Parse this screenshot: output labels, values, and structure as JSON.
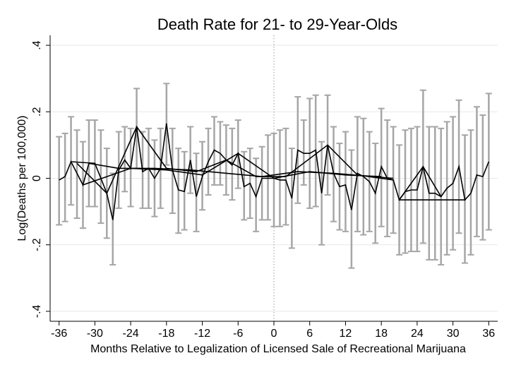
{
  "chart_data": {
    "type": "line",
    "title": "Death Rate for 21- to 29-Year-Olds",
    "xlabel": "Months Relative to Legalization of Licensed Sale of Recreational Marijuana",
    "ylabel": "Log(Deaths per 100,000)",
    "xlim": [
      -37.5,
      37.5
    ],
    "ylim": [
      -0.43,
      0.43
    ],
    "x_ticks": [
      -36,
      -30,
      -24,
      -18,
      -12,
      -6,
      0,
      6,
      12,
      18,
      24,
      30,
      36
    ],
    "y_ticks": [
      {
        "value": 0.4,
        "label": ".4"
      },
      {
        "value": 0.2,
        "label": ".2"
      },
      {
        "value": 0,
        "label": "0"
      },
      {
        "value": -0.2,
        "label": "-.2"
      },
      {
        "value": -0.4,
        "label": "-.4"
      }
    ],
    "grid": "horizontal",
    "reference_line": {
      "x": 0,
      "style": "dotted"
    },
    "colors": {
      "line": "#000000",
      "error_bars": "#a6a6a6",
      "grid": "#e8e8e8",
      "reference": "#9a9a9a"
    },
    "estimates": [
      {
        "x": -36,
        "y": -0.005,
        "lo": -0.14,
        "hi": 0.125
      },
      {
        "x": -35,
        "y": 0.005,
        "lo": -0.13,
        "hi": 0.135
      },
      {
        "x": -34,
        "y": 0.05,
        "lo": -0.08,
        "hi": 0.185
      },
      {
        "x": -33,
        "y": 0.015,
        "lo": -0.12,
        "hi": 0.145
      },
      {
        "x": -32,
        "y": -0.02,
        "lo": -0.15,
        "hi": 0.11
      },
      {
        "x": -31,
        "y": 0.045,
        "lo": -0.085,
        "hi": 0.175
      },
      {
        "x": -30,
        "y": 0.045,
        "lo": -0.085,
        "hi": 0.175
      },
      {
        "x": -29,
        "y": 0.0,
        "lo": -0.135,
        "hi": 0.145
      },
      {
        "x": -28,
        "y": -0.045,
        "lo": -0.18,
        "hi": 0.09
      },
      {
        "x": -27,
        "y": -0.125,
        "lo": -0.26,
        "hi": 0.015
      },
      {
        "x": -26,
        "y": 0.025,
        "lo": -0.09,
        "hi": 0.14
      },
      {
        "x": -25,
        "y": 0.055,
        "lo": -0.04,
        "hi": 0.155
      },
      {
        "x": -24,
        "y": 0.03,
        "lo": -0.085,
        "hi": 0.15
      },
      {
        "x": -23,
        "y": 0.155,
        "lo": 0.03,
        "hi": 0.27
      },
      {
        "x": -22,
        "y": 0.02,
        "lo": -0.09,
        "hi": 0.14
      },
      {
        "x": -21,
        "y": 0.03,
        "lo": -0.09,
        "hi": 0.15
      },
      {
        "x": -20,
        "y": 0.0,
        "lo": -0.115,
        "hi": 0.115
      },
      {
        "x": -19,
        "y": 0.03,
        "lo": -0.09,
        "hi": 0.15
      },
      {
        "x": -18,
        "y": 0.165,
        "lo": 0.04,
        "hi": 0.285
      },
      {
        "x": -17,
        "y": 0.025,
        "lo": -0.105,
        "hi": 0.15
      },
      {
        "x": -16,
        "y": -0.035,
        "lo": -0.165,
        "hi": 0.09
      },
      {
        "x": -15,
        "y": -0.04,
        "lo": -0.155,
        "hi": 0.08
      },
      {
        "x": -14,
        "y": 0.055,
        "lo": -0.045,
        "hi": 0.155
      },
      {
        "x": -13,
        "y": -0.055,
        "lo": -0.16,
        "hi": 0.075
      },
      {
        "x": -12,
        "y": 0.005,
        "lo": -0.095,
        "hi": 0.11
      },
      {
        "x": -11,
        "y": 0.05,
        "lo": -0.05,
        "hi": 0.15
      },
      {
        "x": -10,
        "y": 0.085,
        "lo": -0.02,
        "hi": 0.185
      },
      {
        "x": -9,
        "y": 0.075,
        "lo": -0.02,
        "hi": 0.17
      },
      {
        "x": -8,
        "y": 0.055,
        "lo": -0.05,
        "hi": 0.16
      },
      {
        "x": -7,
        "y": 0.04,
        "lo": -0.065,
        "hi": 0.15
      },
      {
        "x": -6,
        "y": 0.075,
        "lo": -0.03,
        "hi": 0.175
      },
      {
        "x": -5,
        "y": -0.025,
        "lo": -0.125,
        "hi": 0.08
      },
      {
        "x": -4,
        "y": -0.015,
        "lo": -0.12,
        "hi": 0.09
      },
      {
        "x": -3,
        "y": -0.055,
        "lo": -0.16,
        "hi": 0.06
      },
      {
        "x": -2,
        "y": 0.0,
        "lo": -0.125,
        "hi": 0.095
      },
      {
        "x": -1,
        "y": 0.0,
        "lo": -0.125,
        "hi": 0.13
      },
      {
        "x": 0,
        "y": 0.0,
        "lo": -0.145,
        "hi": 0.135
      },
      {
        "x": 1,
        "y": -0.005,
        "lo": -0.145,
        "hi": 0.145
      },
      {
        "x": 2,
        "y": -0.005,
        "lo": -0.14,
        "hi": 0.15
      },
      {
        "x": 3,
        "y": -0.06,
        "lo": -0.21,
        "hi": 0.09
      },
      {
        "x": 4,
        "y": 0.085,
        "lo": -0.075,
        "hi": 0.245
      },
      {
        "x": 5,
        "y": 0.075,
        "lo": -0.02,
        "hi": 0.175
      },
      {
        "x": 6,
        "y": 0.075,
        "lo": -0.09,
        "hi": 0.24
      },
      {
        "x": 7,
        "y": 0.085,
        "lo": -0.085,
        "hi": 0.25
      },
      {
        "x": 8,
        "y": -0.045,
        "lo": -0.2,
        "hi": 0.11
      },
      {
        "x": 9,
        "y": 0.1,
        "lo": -0.05,
        "hi": 0.25
      },
      {
        "x": 10,
        "y": 0.015,
        "lo": -0.13,
        "hi": 0.155
      },
      {
        "x": 11,
        "y": -0.025,
        "lo": -0.155,
        "hi": 0.105
      },
      {
        "x": 12,
        "y": -0.02,
        "lo": -0.16,
        "hi": 0.14
      },
      {
        "x": 13,
        "y": -0.095,
        "lo": -0.27,
        "hi": 0.085
      },
      {
        "x": 14,
        "y": 0.015,
        "lo": -0.16,
        "hi": 0.185
      },
      {
        "x": 15,
        "y": 0.005,
        "lo": -0.17,
        "hi": 0.18
      },
      {
        "x": 16,
        "y": -0.01,
        "lo": -0.16,
        "hi": 0.14
      },
      {
        "x": 17,
        "y": -0.045,
        "lo": -0.195,
        "hi": 0.105
      },
      {
        "x": 18,
        "y": 0.035,
        "lo": -0.145,
        "hi": 0.21
      },
      {
        "x": 19,
        "y": 0.0,
        "lo": -0.175,
        "hi": 0.175
      },
      {
        "x": 20,
        "y": -0.005,
        "lo": -0.165,
        "hi": 0.155
      },
      {
        "x": 21,
        "y": -0.065,
        "lo": -0.23,
        "hi": 0.1
      },
      {
        "x": 22,
        "y": -0.04,
        "lo": -0.225,
        "hi": 0.145
      },
      {
        "x": 23,
        "y": -0.035,
        "lo": -0.22,
        "hi": 0.15
      },
      {
        "x": 24,
        "y": -0.035,
        "lo": -0.22,
        "hi": 0.155
      },
      {
        "x": 25,
        "y": 0.035,
        "lo": -0.195,
        "hi": 0.265
      },
      {
        "x": 26,
        "y": -0.045,
        "lo": -0.245,
        "hi": 0.155
      },
      {
        "x": 27,
        "y": -0.045,
        "lo": -0.245,
        "hi": 0.155
      },
      {
        "x": 28,
        "y": -0.055,
        "lo": -0.26,
        "hi": 0.15
      },
      {
        "x": 29,
        "y": -0.03,
        "lo": -0.23,
        "hi": 0.17
      },
      {
        "x": 30,
        "y": -0.015,
        "lo": -0.215,
        "hi": 0.185
      },
      {
        "x": 31,
        "y": 0.035,
        "lo": -0.165,
        "hi": 0.235
      },
      {
        "x": 32,
        "y": -0.065,
        "lo": -0.255,
        "hi": 0.13
      },
      {
        "x": 33,
        "y": -0.045,
        "lo": -0.23,
        "hi": 0.145
      },
      {
        "x": 34,
        "y": 0.01,
        "lo": -0.175,
        "hi": 0.215
      },
      {
        "x": 35,
        "y": 0.005,
        "lo": -0.185,
        "hi": 0.19
      },
      {
        "x": 36,
        "y": 0.05,
        "lo": -0.155,
        "hi": 0.255
      }
    ],
    "connector_paths": [
      {
        "points": [
          [
            -36,
            -0.005
          ],
          [
            -35,
            0.005
          ],
          [
            -34,
            0.05
          ],
          [
            -33,
            0.015
          ],
          [
            -32,
            -0.02
          ],
          [
            -31,
            0.045
          ],
          [
            -30,
            0.045
          ],
          [
            -29,
            0.0
          ],
          [
            -28,
            -0.045
          ],
          [
            -27,
            -0.125
          ],
          [
            -26,
            0.025
          ],
          [
            -25,
            0.055
          ],
          [
            -24,
            0.03
          ],
          [
            -23,
            0.155
          ],
          [
            -22,
            0.02
          ],
          [
            -21,
            0.03
          ],
          [
            -20,
            0.0
          ],
          [
            -19,
            0.03
          ],
          [
            -18,
            0.165
          ],
          [
            -17,
            0.025
          ],
          [
            -16,
            -0.035
          ],
          [
            -15,
            -0.04
          ],
          [
            -14,
            0.055
          ],
          [
            -13,
            -0.055
          ],
          [
            -12,
            0.005
          ],
          [
            -11,
            0.05
          ],
          [
            -10,
            0.085
          ],
          [
            -9,
            0.075
          ],
          [
            -8,
            0.055
          ],
          [
            -7,
            0.04
          ],
          [
            -6,
            0.075
          ],
          [
            -5,
            -0.025
          ],
          [
            -4,
            -0.015
          ],
          [
            -3,
            -0.055
          ],
          [
            -2,
            0.0
          ],
          [
            -1,
            0.0
          ],
          [
            0,
            0.0
          ],
          [
            1,
            -0.005
          ],
          [
            2,
            -0.005
          ],
          [
            3,
            -0.06
          ],
          [
            4,
            0.085
          ],
          [
            5,
            0.075
          ],
          [
            6,
            0.075
          ],
          [
            7,
            0.085
          ],
          [
            8,
            -0.045
          ],
          [
            9,
            0.1
          ],
          [
            10,
            0.015
          ],
          [
            11,
            -0.025
          ],
          [
            12,
            -0.02
          ],
          [
            13,
            -0.095
          ],
          [
            14,
            0.015
          ],
          [
            15,
            0.005
          ],
          [
            16,
            -0.01
          ],
          [
            17,
            -0.045
          ],
          [
            18,
            0.035
          ],
          [
            19,
            0.0
          ],
          [
            20,
            -0.005
          ],
          [
            21,
            -0.065
          ],
          [
            22,
            -0.04
          ],
          [
            23,
            -0.035
          ],
          [
            24,
            -0.035
          ],
          [
            25,
            0.035
          ],
          [
            26,
            -0.045
          ],
          [
            27,
            -0.045
          ],
          [
            28,
            -0.055
          ],
          [
            29,
            -0.03
          ],
          [
            30,
            -0.015
          ],
          [
            31,
            0.035
          ],
          [
            32,
            -0.065
          ],
          [
            33,
            -0.045
          ],
          [
            34,
            0.01
          ],
          [
            35,
            0.005
          ],
          [
            36,
            0.05
          ]
        ]
      },
      {
        "points": [
          [
            -32,
            -0.02
          ],
          [
            -24,
            0.03
          ],
          [
            -18,
            0.025
          ],
          [
            -12,
            0.01
          ],
          [
            -6,
            0.075
          ],
          [
            0,
            0.0
          ],
          [
            6,
            0.02
          ],
          [
            12,
            0.01
          ],
          [
            18,
            0.005
          ]
        ]
      },
      {
        "points": [
          [
            -33,
            0.045
          ],
          [
            -28,
            -0.045
          ],
          [
            -23,
            0.155
          ],
          [
            -18,
            0.03
          ],
          [
            -13,
            0.02
          ],
          [
            -8,
            0.055
          ],
          [
            -3,
            0.005
          ],
          [
            2,
            0.005
          ],
          [
            9,
            0.1
          ],
          [
            14,
            0.01
          ],
          [
            20,
            -0.005
          ]
        ]
      },
      {
        "points": [
          [
            -31,
            0.045
          ],
          [
            -26,
            0.03
          ],
          [
            -20,
            0.03
          ],
          [
            -14,
            0.025
          ],
          [
            -2,
            0.005
          ],
          [
            4,
            0.02
          ],
          [
            10,
            0.015
          ],
          [
            20,
            0.0
          ]
        ]
      },
      {
        "points": [
          [
            -34,
            0.05
          ],
          [
            -30,
            0.045
          ]
        ]
      },
      {
        "points": [
          [
            21,
            -0.065
          ],
          [
            32,
            -0.065
          ]
        ]
      },
      {
        "points": [
          [
            21,
            -0.065
          ],
          [
            25,
            0.035
          ],
          [
            28,
            -0.055
          ]
        ]
      }
    ]
  }
}
